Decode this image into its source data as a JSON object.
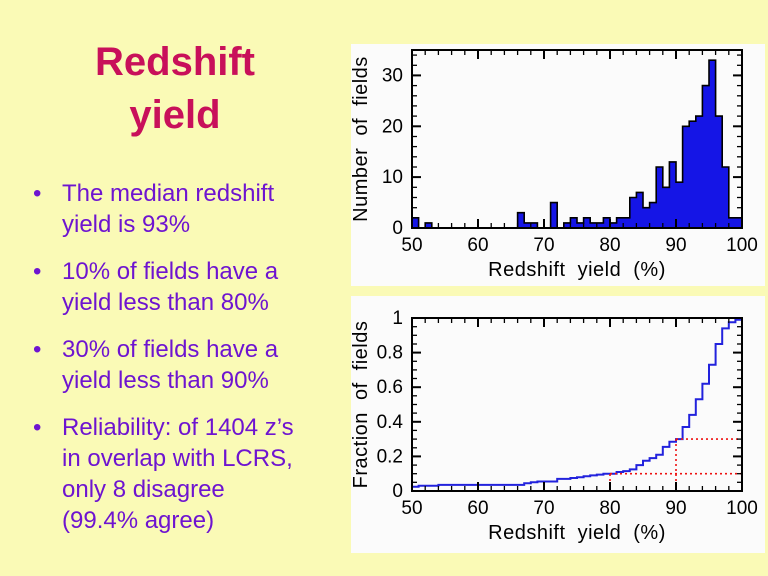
{
  "slide": {
    "title_lines": [
      "Redshift",
      "yield"
    ],
    "bullet_char": "•",
    "bullets": [
      {
        "lines": [
          "The median redshift",
          "yield is 93%"
        ]
      },
      {
        "lines": [
          "10% of fields have a",
          "yield less than 80%"
        ]
      },
      {
        "lines": [
          "30% of fields have a",
          "yield less than 90%"
        ]
      },
      {
        "lines": [
          "Reliability: of 1404 z’s",
          "in overlap with LCRS,",
          "only 8 disagree",
          "(99.4% agree)"
        ]
      }
    ],
    "colors": {
      "background": "#fafab6",
      "title": "#c8105a",
      "bullet_text": "#6e14d0",
      "panel": "#fbfbfb"
    }
  },
  "chart_data": [
    {
      "type": "bar",
      "title": "",
      "xlabel": "Redshift yield (%)",
      "ylabel": "Number of fields",
      "xlim": [
        50,
        100
      ],
      "ylim": [
        0,
        35
      ],
      "xticks": [
        50,
        60,
        70,
        80,
        90,
        100
      ],
      "xtick_labels": [
        "50",
        "60",
        "70",
        "80",
        "90",
        "100"
      ],
      "yticks": [
        0,
        10,
        20,
        30
      ],
      "ytick_labels": [
        "0",
        "10",
        "20",
        "30"
      ],
      "x_minor": 2,
      "y_minor": 2,
      "bin_start": 50,
      "bin_width": 1,
      "counts": [
        2,
        0,
        1,
        0,
        0,
        0,
        0,
        0,
        0,
        0,
        0,
        0,
        0,
        0,
        0,
        0,
        3,
        1,
        1,
        0,
        0,
        5,
        0,
        1,
        2,
        1,
        2,
        1,
        1,
        2,
        1,
        2,
        2,
        6,
        7,
        4,
        5,
        12,
        8,
        13,
        9,
        20,
        21,
        22,
        28,
        33,
        22,
        12,
        2,
        2
      ],
      "bar_color": "#1515e6",
      "bar_outline": "#000000"
    },
    {
      "type": "line",
      "title": "",
      "xlabel": "Redshift yield (%)",
      "ylabel": "Fraction of fields",
      "xlim": [
        50,
        100
      ],
      "ylim": [
        0,
        1
      ],
      "xticks": [
        50,
        60,
        70,
        80,
        90,
        100
      ],
      "xtick_labels": [
        "50",
        "60",
        "70",
        "80",
        "90",
        "100"
      ],
      "yticks": [
        0,
        0.2,
        0.4,
        0.6,
        0.8,
        1
      ],
      "ytick_labels": [
        "0",
        "0.2",
        "0.4",
        "0.6",
        "0.8",
        "1"
      ],
      "x_minor": 2,
      "y_minor": 0.05,
      "x_start": 50,
      "fractions": [
        0.025,
        0.03,
        0.03,
        0.03,
        0.035,
        0.035,
        0.035,
        0.035,
        0.035,
        0.035,
        0.035,
        0.035,
        0.035,
        0.035,
        0.035,
        0.035,
        0.035,
        0.045,
        0.05,
        0.055,
        0.055,
        0.055,
        0.07,
        0.07,
        0.075,
        0.08,
        0.085,
        0.09,
        0.095,
        0.1,
        0.1,
        0.11,
        0.115,
        0.125,
        0.15,
        0.175,
        0.19,
        0.21,
        0.255,
        0.285,
        0.3,
        0.37,
        0.44,
        0.53,
        0.62,
        0.73,
        0.85,
        0.94,
        0.975,
        0.99,
        1.0
      ],
      "line_color": "#2222dd",
      "guides": [
        {
          "x": 80,
          "y": 0.1
        },
        {
          "x": 90,
          "y": 0.3
        }
      ],
      "guide_color": "#ee1111"
    }
  ]
}
